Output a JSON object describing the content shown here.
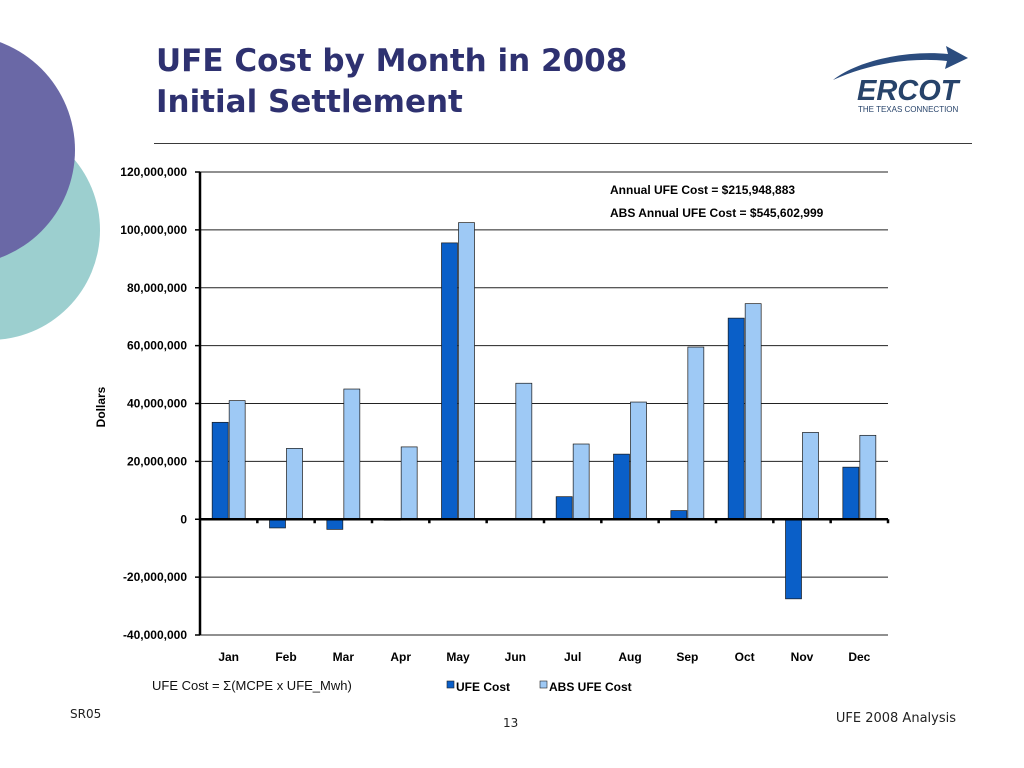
{
  "slide": {
    "title_line1": "UFE Cost by Month in 2008",
    "title_line2": "Initial Settlement",
    "logo_text": "ERCOT",
    "logo_tagline": "THE TEXAS CONNECTION",
    "formula": "UFE Cost = Σ(MCPE x UFE_Mwh)",
    "slide_code": "SR05",
    "page_number": "13",
    "footer_right": "UFE 2008 Analysis"
  },
  "colors": {
    "title": "#2e3170",
    "ufe_cost": "#0a5fc8",
    "abs_ufe_cost": "#9ec9f5",
    "deco_purple": "#6a68a6",
    "deco_teal": "#9ccfcf",
    "logo_navy": "#27436a",
    "logo_arrow": "#2b4c7e"
  },
  "chart_data": {
    "type": "bar",
    "categories": [
      "Jan",
      "Feb",
      "Mar",
      "Apr",
      "May",
      "Jun",
      "Jul",
      "Aug",
      "Sep",
      "Oct",
      "Nov",
      "Dec"
    ],
    "series": [
      {
        "name": "UFE Cost",
        "values": [
          33500000,
          -3000000,
          -3500000,
          -200000,
          95500000,
          200000,
          7800000,
          22500000,
          3000000,
          69500000,
          -27500000,
          18000000
        ]
      },
      {
        "name": "ABS UFE Cost",
        "values": [
          41000000,
          24500000,
          45000000,
          25000000,
          102500000,
          47000000,
          26000000,
          40500000,
          59500000,
          74500000,
          30000000,
          29000000
        ]
      }
    ],
    "ylabel": "Dollars",
    "xlabel": "",
    "ylim": [
      -40000000,
      120000000
    ],
    "yticks": [
      -40000000,
      -20000000,
      0,
      20000000,
      40000000,
      60000000,
      80000000,
      100000000,
      120000000
    ],
    "ytick_labels": [
      "-40,000,000",
      "-20,000,000",
      "0",
      "20,000,000",
      "40,000,000",
      "60,000,000",
      "80,000,000",
      "100,000,000",
      "120,000,000"
    ],
    "grid": true,
    "legend": "bottom",
    "annotations": [
      "Annual UFE Cost = $215,948,883",
      "ABS Annual UFE Cost = $545,602,999"
    ]
  }
}
